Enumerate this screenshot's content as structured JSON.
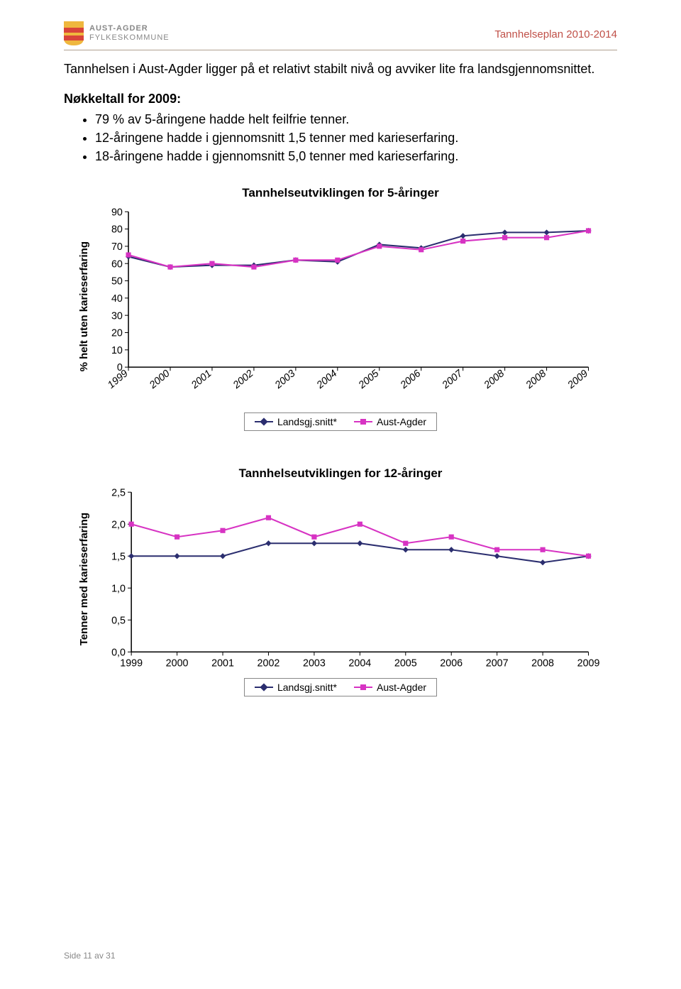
{
  "header": {
    "org_line1": "AUST-AGDER",
    "org_line2": "FYLKESKOMMUNE",
    "plan_title": "Tannhelseplan 2010-2014",
    "shield_colors": {
      "top": "#efb73e",
      "mid": "#d9443a",
      "bot": "#efb73e"
    }
  },
  "intro": {
    "p1": "Tannhelsen i Aust-Agder ligger på et relativt stabilt nivå og avviker lite fra landsgjennomsnittet.",
    "h2": "Nøkkeltall for 2009:",
    "bullets": [
      "79 % av 5-åringene hadde helt feilfrie tenner.",
      "12-åringene hadde i gjennomsnitt 1,5 tenner med karieserfaring.",
      "18-åringene hadde i gjennomsnitt 5,0 tenner med karieserfaring."
    ]
  },
  "chart1": {
    "type": "line",
    "title": "Tannhelseutviklingen for 5-åringer",
    "ylabel": "% helt uten karieserfaring",
    "ylim": [
      0,
      90
    ],
    "ytick_step": 10,
    "categories": [
      "1999",
      "2000",
      "2001",
      "2002",
      "2003",
      "2004",
      "2005",
      "2006",
      "2007",
      "2008",
      "2008",
      "2009"
    ],
    "series": [
      {
        "name": "Landsgj.snitt*",
        "color": "#2b2e6f",
        "marker": "diamond",
        "values": [
          64,
          58,
          59,
          59,
          62,
          61,
          71,
          69,
          76,
          78,
          78,
          79
        ]
      },
      {
        "name": "Aust-Agder",
        "color": "#d733c3",
        "marker": "square",
        "values": [
          65,
          58,
          60,
          58,
          62,
          62,
          70,
          68,
          73,
          75,
          75,
          79
        ]
      }
    ],
    "axis_color": "#000000",
    "grid_color": "#000000",
    "label_fontsize": 15,
    "tick_fontsize": 14,
    "x_rotate": -40
  },
  "chart2": {
    "type": "line",
    "title": "Tannhelseutviklingen for 12-åringer",
    "ylabel": "Tenner med karieserfaring",
    "ylim": [
      0,
      2.5
    ],
    "ytick_step": 0.5,
    "categories": [
      "1999",
      "2000",
      "2001",
      "2002",
      "2003",
      "2004",
      "2005",
      "2006",
      "2007",
      "2008",
      "2009"
    ],
    "series": [
      {
        "name": "Landsgj.snitt*",
        "color": "#2b2e6f",
        "marker": "diamond",
        "values": [
          1.5,
          1.5,
          1.5,
          1.7,
          1.7,
          1.7,
          1.6,
          1.6,
          1.5,
          1.4,
          1.5
        ]
      },
      {
        "name": "Aust-Agder",
        "color": "#d733c3",
        "marker": "square",
        "values": [
          2.0,
          1.8,
          1.9,
          2.1,
          1.8,
          2.0,
          1.7,
          1.8,
          1.6,
          1.6,
          1.5
        ]
      }
    ],
    "axis_color": "#000000",
    "label_fontsize": 15,
    "tick_fontsize": 14,
    "x_rotate": 0
  },
  "legend": {
    "s1": "Landsgj.snitt*",
    "s2": "Aust-Agder"
  },
  "footer": "Side 11 av 31"
}
